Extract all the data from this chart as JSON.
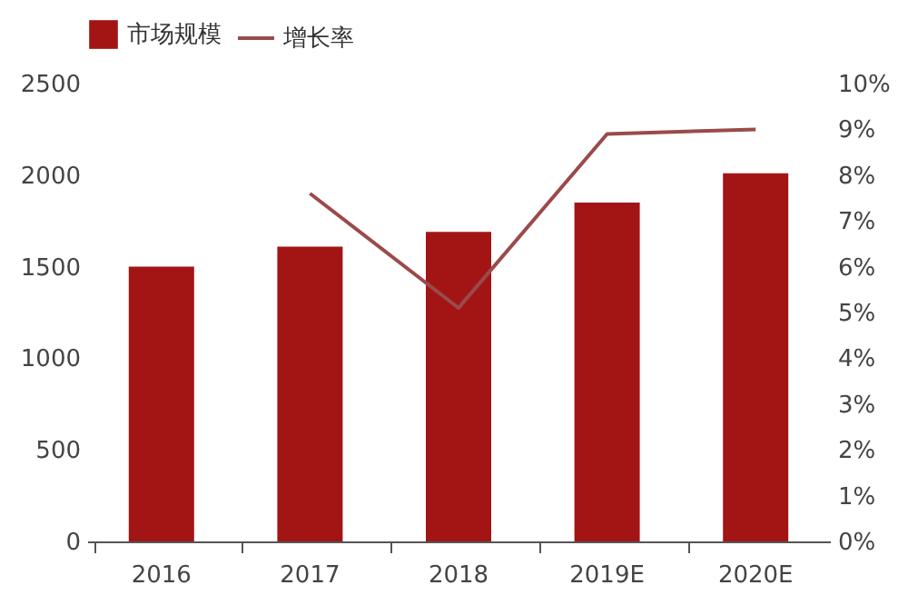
{
  "chart_data": {
    "type": "bar",
    "categories": [
      "2016",
      "2017",
      "2018",
      "2019E",
      "2020E"
    ],
    "series": [
      {
        "name": "市场规模",
        "color": "#a31515",
        "values": [
          1500,
          1610,
          1690,
          1850,
          2010
        ]
      },
      {
        "name": "增长率",
        "type": "line",
        "axis": "y2",
        "color": "#9b4a4a",
        "values": [
          null,
          7.6,
          5.1,
          8.9,
          9.0
        ]
      }
    ],
    "ylim": [
      0,
      2500
    ],
    "yticks": [
      0,
      500,
      1000,
      1500,
      2000,
      2500
    ],
    "y2lim": [
      0,
      10
    ],
    "y2ticks": [
      {
        "value": 0,
        "label": "0%"
      },
      {
        "value": 1,
        "label": "1%"
      },
      {
        "value": 2,
        "label": "2%"
      },
      {
        "value": 3,
        "label": "3%"
      },
      {
        "value": 4,
        "label": "4%"
      },
      {
        "value": 5,
        "label": "5%"
      },
      {
        "value": 6,
        "label": "6%"
      },
      {
        "value": 7,
        "label": "7%"
      },
      {
        "value": 8,
        "label": "8%"
      },
      {
        "value": 9,
        "label": "9%"
      },
      {
        "value": 10,
        "label": "10%"
      }
    ],
    "grid": false,
    "legend": "top",
    "line_style": "solid",
    "marker": "none"
  }
}
